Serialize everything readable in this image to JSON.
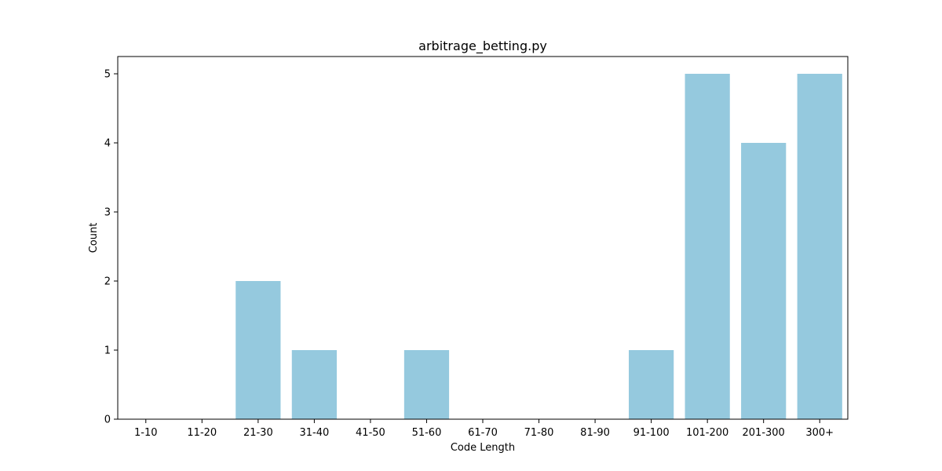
{
  "chart_data": {
    "type": "bar",
    "title": "arbitrage_betting.py",
    "xlabel": "Code Length",
    "ylabel": "Count",
    "categories": [
      "1-10",
      "11-20",
      "21-30",
      "31-40",
      "41-50",
      "51-60",
      "61-70",
      "71-80",
      "81-90",
      "91-100",
      "101-200",
      "201-300",
      "300+"
    ],
    "values": [
      0,
      0,
      2,
      1,
      0,
      1,
      0,
      0,
      0,
      1,
      5,
      4,
      5
    ],
    "ylim": [
      0,
      5.25
    ],
    "yticks": [
      0,
      1,
      2,
      3,
      4,
      5
    ],
    "bar_color": "#95c9de",
    "grid": false
  }
}
